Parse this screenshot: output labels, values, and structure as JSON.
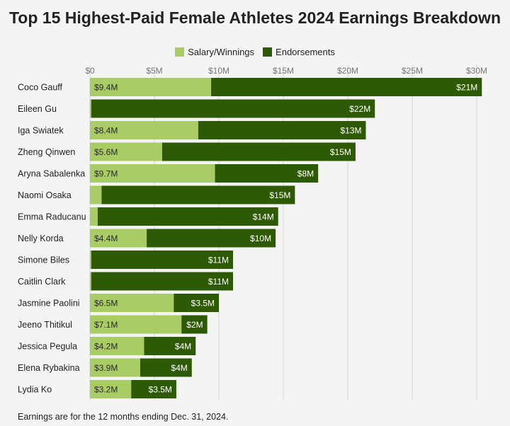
{
  "title": "Top 15 Highest-Paid Female Athletes 2024 Earnings Breakdown",
  "footnote": "Earnings are for the 12 months ending Dec. 31, 2024.",
  "colors": {
    "salary": "#a9cc64",
    "endorsements": "#2f5a05",
    "grid": "#d6d6d6",
    "background": "#f4f4f4"
  },
  "chart_data": {
    "type": "bar",
    "orientation": "horizontal",
    "stacked": true,
    "legend_position": "top",
    "grid": true,
    "xlim": [
      0,
      31
    ],
    "ticks": [
      0,
      5,
      10,
      15,
      20,
      25,
      30
    ],
    "tick_labels": [
      "$0",
      "$5M",
      "$10M",
      "$15M",
      "$20M",
      "$25M",
      "$30M"
    ],
    "categories": [
      "Coco Gauff",
      "Eileen Gu",
      "Iga Swiatek",
      "Zheng Qinwen",
      "Aryna Sabalenka",
      "Naomi Osaka",
      "Emma Raducanu",
      "Nelly Korda",
      "Simone Biles",
      "Caitlin Clark",
      "Jasmine Paolini",
      "Jeeno Thitikul",
      "Jessica Pegula",
      "Elena Rybakina",
      "Lydia Ko"
    ],
    "series": [
      {
        "name": "Salary/Winnings",
        "values": [
          9.4,
          0.1,
          8.4,
          5.6,
          9.7,
          0.9,
          0.6,
          4.4,
          0.1,
          0.1,
          6.5,
          7.1,
          4.2,
          3.9,
          3.2
        ],
        "labels": [
          "$9.4M",
          "",
          "$8.4M",
          "$5.6M",
          "$9.7M",
          "",
          "",
          "$4.4M",
          "",
          "",
          "$6.5M",
          "$7.1M",
          "$4.2M",
          "$3.9M",
          "$3.2M"
        ]
      },
      {
        "name": "Endorsements",
        "values": [
          21,
          22,
          13,
          15,
          8,
          15,
          14,
          10,
          11,
          11,
          3.5,
          2,
          4,
          4,
          3.5
        ],
        "labels": [
          "$21M",
          "$22M",
          "$13M",
          "$15M",
          "$8M",
          "$15M",
          "$14M",
          "$10M",
          "$11M",
          "$11M",
          "$3.5M",
          "$2M",
          "$4M",
          "$4M",
          "$3.5M"
        ]
      }
    ]
  }
}
